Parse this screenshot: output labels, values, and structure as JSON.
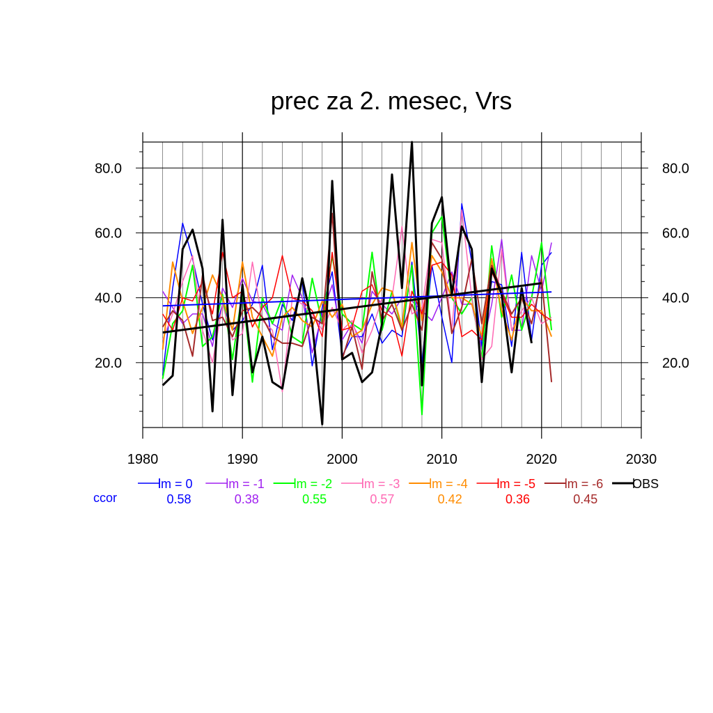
{
  "chart_data": {
    "type": "line",
    "title": "prec za 2. mesec, Vrs",
    "xlabel": "",
    "ylabel": "",
    "xlim": [
      1980,
      2030
    ],
    "ylim": [
      0,
      88
    ],
    "x_ticks": [
      1980,
      1990,
      2000,
      2010,
      2020,
      2030
    ],
    "x_tick_labels": [
      "1980",
      "1990",
      "2000",
      "2010",
      "2020",
      "2030"
    ],
    "y_ticks": [
      20,
      40,
      60,
      80
    ],
    "y_tick_labels": [
      "20.0",
      "40.0",
      "60.0",
      "80.0"
    ],
    "grid": true,
    "legend_position": "bottom",
    "ccor_label": "ccor",
    "x": [
      1982,
      1983,
      1984,
      1985,
      1986,
      1987,
      1988,
      1989,
      1990,
      1991,
      1992,
      1993,
      1994,
      1995,
      1996,
      1997,
      1998,
      1999,
      2000,
      2001,
      2002,
      2003,
      2004,
      2005,
      2006,
      2007,
      2008,
      2009,
      2010,
      2011,
      2012,
      2013,
      2014,
      2015,
      2016,
      2017,
      2018,
      2019,
      2020,
      2021
    ],
    "series": [
      {
        "name": "lm = 0",
        "ccor": "0.58",
        "color": "#0000ff",
        "width": 1.5,
        "values": [
          16,
          43,
          63,
          52,
          38,
          27,
          38,
          30,
          33,
          38,
          50,
          24,
          38,
          33,
          45,
          19,
          37,
          48,
          22,
          28,
          28,
          35,
          26,
          30,
          28,
          51,
          20,
          50,
          34,
          20,
          69,
          51,
          25,
          45,
          44,
          25,
          54,
          27,
          50,
          54
        ]
      },
      {
        "name": "lm = -1",
        "ccor": "0.38",
        "color": "#a020f0",
        "width": 1.5,
        "values": [
          42,
          37,
          32,
          35,
          35,
          25,
          43,
          37,
          46,
          39,
          38,
          32,
          30,
          47,
          40,
          23,
          35,
          44,
          27,
          32,
          26,
          42,
          38,
          35,
          40,
          39,
          36,
          33,
          40,
          48,
          38,
          38,
          24,
          38,
          58,
          30,
          30,
          53,
          42,
          57
        ]
      },
      {
        "name": "lm = -2",
        "ccor": "0.55",
        "color": "#00ff00",
        "width": 2.0,
        "values": [
          15,
          32,
          36,
          50,
          25,
          28,
          41,
          21,
          42,
          14,
          40,
          32,
          40,
          28,
          26,
          46,
          32,
          53,
          35,
          32,
          30,
          54,
          30,
          42,
          30,
          50,
          4,
          60,
          65,
          40,
          35,
          40,
          21,
          56,
          34,
          47,
          30,
          40,
          57,
          30
        ]
      },
      {
        "name": "lm = -3",
        "ccor": "0.57",
        "color": "#ff69b4",
        "width": 1.5,
        "values": [
          27,
          35,
          45,
          53,
          30,
          20,
          38,
          27,
          29,
          51,
          33,
          30,
          11,
          40,
          38,
          35,
          30,
          37,
          30,
          33,
          23,
          30,
          40,
          40,
          62,
          35,
          37,
          58,
          57,
          30,
          67,
          40,
          21,
          25,
          55,
          30,
          36,
          40,
          32,
          34
        ]
      },
      {
        "name": "lm = -4",
        "ccor": "0.42",
        "color": "#ff8c00",
        "width": 2.0,
        "values": [
          24,
          51,
          39,
          29,
          37,
          47,
          40,
          30,
          51,
          34,
          28,
          22,
          34,
          37,
          33,
          31,
          39,
          34,
          38,
          28,
          30,
          38,
          43,
          42,
          31,
          57,
          33,
          53,
          48,
          40,
          40,
          38,
          28,
          52,
          36,
          27,
          40,
          36,
          36,
          28
        ]
      },
      {
        "name": "lm = -5",
        "ccor": "0.36",
        "color": "#ff0000",
        "width": 1.5,
        "values": [
          35,
          30,
          40,
          39,
          45,
          35,
          54,
          40,
          42,
          31,
          37,
          40,
          53,
          40,
          39,
          36,
          28,
          54,
          30,
          31,
          42,
          44,
          36,
          34,
          22,
          42,
          35,
          50,
          51,
          47,
          28,
          30,
          27,
          48,
          41,
          34,
          34,
          38,
          35,
          33
        ]
      },
      {
        "name": "lm = -6",
        "ccor": "0.45",
        "color": "#a52a2a",
        "width": 2.0,
        "values": [
          31,
          36,
          33,
          22,
          47,
          33,
          34,
          28,
          36,
          37,
          34,
          28,
          26,
          26,
          25,
          34,
          32,
          66,
          21,
          31,
          18,
          48,
          33,
          38,
          30,
          38,
          30,
          57,
          52,
          29,
          37,
          52,
          32,
          50,
          42,
          35,
          40,
          32,
          46,
          14
        ]
      },
      {
        "name": "OBS",
        "ccor": "",
        "color": "#000000",
        "width": 3.0,
        "values": [
          13,
          16,
          55,
          61,
          49,
          5,
          64,
          10,
          44,
          17,
          28,
          14,
          12,
          30,
          46,
          32,
          1,
          76,
          21,
          23,
          14,
          17,
          32,
          78,
          43,
          88,
          13,
          63,
          71,
          41,
          62,
          55,
          14,
          49,
          41,
          17,
          43,
          26,
          null,
          null
        ]
      }
    ],
    "trend_lines": [
      {
        "series": "lm = 0",
        "color": "#0000ff",
        "x": [
          1982,
          2021
        ],
        "y": [
          37.5,
          41.8
        ],
        "width": 2.0
      },
      {
        "series": "OBS",
        "color": "#000000",
        "x": [
          1982,
          2020
        ],
        "y": [
          29.3,
          44.5
        ],
        "width": 3.0
      }
    ]
  }
}
